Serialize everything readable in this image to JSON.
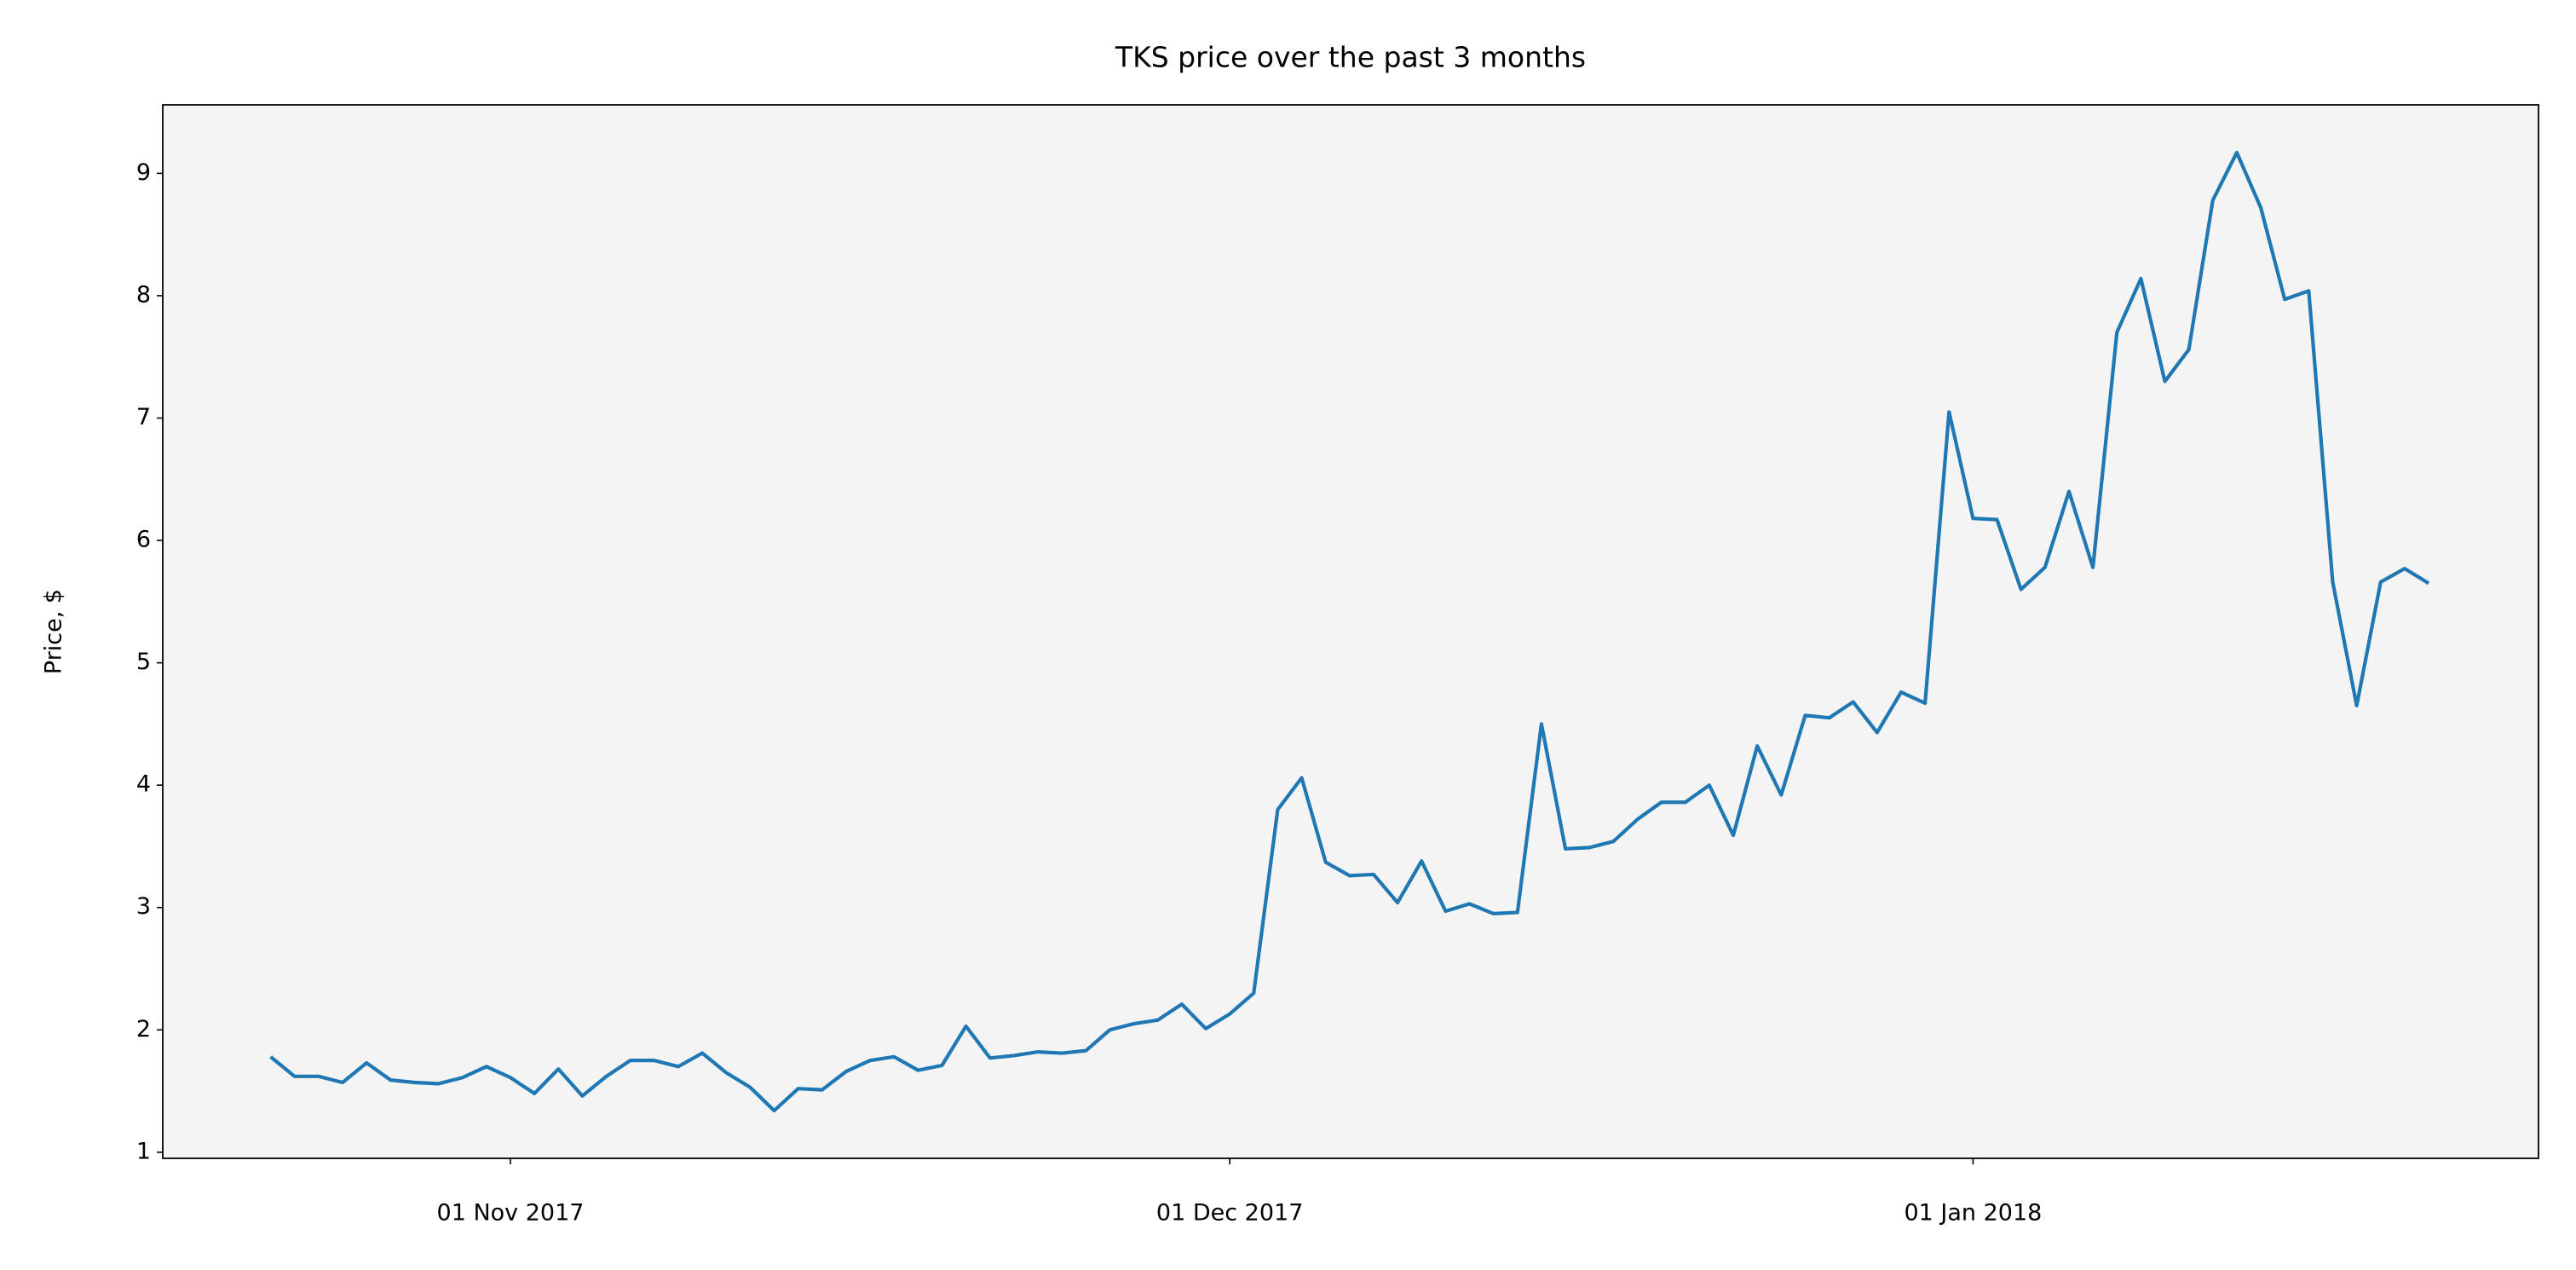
{
  "chart_data": {
    "type": "line",
    "title": "TKS price over the past 3 months",
    "y_label": "Price, $",
    "x": [
      "2017-10-22",
      "2017-10-23",
      "2017-10-24",
      "2017-10-25",
      "2017-10-26",
      "2017-10-27",
      "2017-10-28",
      "2017-10-29",
      "2017-10-30",
      "2017-10-31",
      "2017-11-01",
      "2017-11-02",
      "2017-11-03",
      "2017-11-04",
      "2017-11-05",
      "2017-11-06",
      "2017-11-07",
      "2017-11-08",
      "2017-11-09",
      "2017-11-10",
      "2017-11-11",
      "2017-11-12",
      "2017-11-13",
      "2017-11-14",
      "2017-11-15",
      "2017-11-16",
      "2017-11-17",
      "2017-11-18",
      "2017-11-19",
      "2017-11-20",
      "2017-11-21",
      "2017-11-22",
      "2017-11-23",
      "2017-11-24",
      "2017-11-25",
      "2017-11-26",
      "2017-11-27",
      "2017-11-28",
      "2017-11-29",
      "2017-11-30",
      "2017-12-01",
      "2017-12-02",
      "2017-12-03",
      "2017-12-04",
      "2017-12-05",
      "2017-12-06",
      "2017-12-07",
      "2017-12-08",
      "2017-12-09",
      "2017-12-10",
      "2017-12-11",
      "2017-12-12",
      "2017-12-13",
      "2017-12-14",
      "2017-12-15",
      "2017-12-16",
      "2017-12-17",
      "2017-12-18",
      "2017-12-19",
      "2017-12-20",
      "2017-12-21",
      "2017-12-22",
      "2017-12-23",
      "2017-12-24",
      "2017-12-25",
      "2017-12-26",
      "2017-12-27",
      "2017-12-28",
      "2017-12-29",
      "2017-12-30",
      "2017-12-31",
      "2018-01-01",
      "2018-01-02",
      "2018-01-03",
      "2018-01-04",
      "2018-01-05",
      "2018-01-06",
      "2018-01-07",
      "2018-01-08",
      "2018-01-09",
      "2018-01-10",
      "2018-01-11",
      "2018-01-12",
      "2018-01-13",
      "2018-01-14",
      "2018-01-15",
      "2018-01-16",
      "2018-01-17",
      "2018-01-18",
      "2018-01-19",
      "2018-01-20"
    ],
    "series": [
      {
        "name": "TKS",
        "color": "#1f77b4",
        "values": [
          1.78,
          1.62,
          1.62,
          1.57,
          1.73,
          1.59,
          1.57,
          1.56,
          1.61,
          1.7,
          1.61,
          1.48,
          1.68,
          1.46,
          1.62,
          1.75,
          1.75,
          1.7,
          1.81,
          1.65,
          1.53,
          1.34,
          1.52,
          1.51,
          1.66,
          1.75,
          1.78,
          1.67,
          1.71,
          2.03,
          1.77,
          1.79,
          1.82,
          1.81,
          1.83,
          2.0,
          2.05,
          2.08,
          2.21,
          2.01,
          2.13,
          2.3,
          3.8,
          4.06,
          3.37,
          3.26,
          3.27,
          3.04,
          3.38,
          2.97,
          3.03,
          2.95,
          2.96,
          4.5,
          3.48,
          3.49,
          3.54,
          3.72,
          3.86,
          3.86,
          4.0,
          3.59,
          4.32,
          3.92,
          4.57,
          4.55,
          4.68,
          4.43,
          4.76,
          4.67,
          7.05,
          6.18,
          6.17,
          5.6,
          5.78,
          6.4,
          5.78,
          7.7,
          8.14,
          7.3,
          7.56,
          8.78,
          9.17,
          8.72,
          7.97,
          8.04,
          5.66,
          4.65,
          5.66,
          5.77,
          5.65
        ]
      }
    ],
    "xlim": [
      "2017-10-17T12:00",
      "2018-01-24T14:00"
    ],
    "xticks": [
      {
        "value": "2017-11-01",
        "label": "01 Nov 2017"
      },
      {
        "value": "2017-12-01",
        "label": "01 Dec 2017"
      },
      {
        "value": "2018-01-01",
        "label": "01 Jan 2018"
      }
    ],
    "ylim": [
      0.95,
      9.56
    ],
    "yticks": [
      1,
      2,
      3,
      4,
      5,
      6,
      7,
      8,
      9
    ],
    "plot_background": "#f4f4f4",
    "grid": false
  }
}
